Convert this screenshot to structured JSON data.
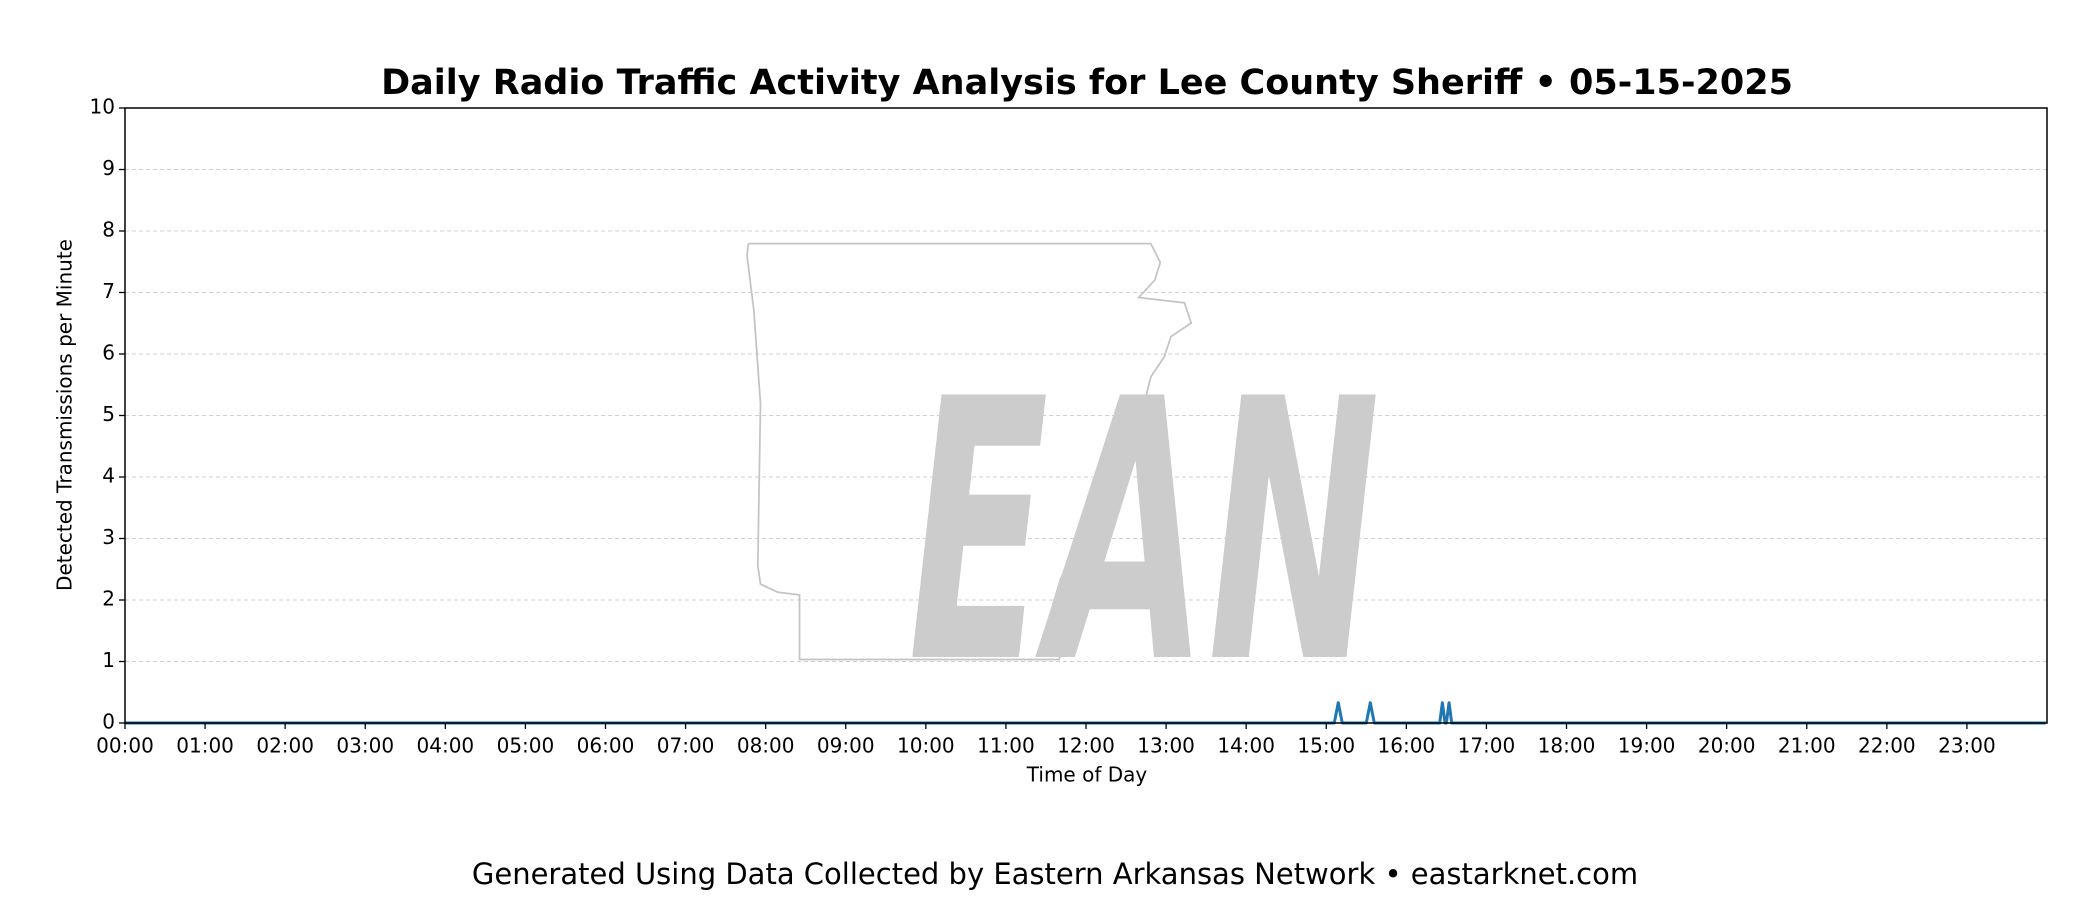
{
  "chart_data": {
    "type": "line",
    "title": "Daily Radio Traffic Activity Analysis for Lee County Sheriff • 05-15-2025",
    "x_label": "Time of Day",
    "y_label": "Detected Transmissions per Minute",
    "footer": "Generated Using Data Collected by Eastern Arkansas Network • eastarknet.com",
    "watermark": "EAN",
    "x": [
      0,
      906,
      909,
      912,
      930,
      933,
      936,
      985,
      987,
      989,
      990,
      992,
      994,
      1439
    ],
    "series": [
      {
        "color": "#1f77b4",
        "values": [
          0,
          0,
          0.33,
          0,
          0,
          0.33,
          0,
          0,
          0.33,
          0,
          0,
          0.33,
          0,
          0
        ]
      }
    ],
    "xlim": [
      0,
      1440
    ],
    "xticks": [
      {
        "value": 0,
        "label": "00:00"
      },
      {
        "value": 60,
        "label": "01:00"
      },
      {
        "value": 120,
        "label": "02:00"
      },
      {
        "value": 180,
        "label": "03:00"
      },
      {
        "value": 240,
        "label": "04:00"
      },
      {
        "value": 300,
        "label": "05:00"
      },
      {
        "value": 360,
        "label": "06:00"
      },
      {
        "value": 420,
        "label": "07:00"
      },
      {
        "value": 480,
        "label": "08:00"
      },
      {
        "value": 540,
        "label": "09:00"
      },
      {
        "value": 600,
        "label": "10:00"
      },
      {
        "value": 660,
        "label": "11:00"
      },
      {
        "value": 720,
        "label": "12:00"
      },
      {
        "value": 780,
        "label": "13:00"
      },
      {
        "value": 840,
        "label": "14:00"
      },
      {
        "value": 900,
        "label": "15:00"
      },
      {
        "value": 960,
        "label": "16:00"
      },
      {
        "value": 1020,
        "label": "17:00"
      },
      {
        "value": 1080,
        "label": "18:00"
      },
      {
        "value": 1140,
        "label": "19:00"
      },
      {
        "value": 1200,
        "label": "20:00"
      },
      {
        "value": 1260,
        "label": "21:00"
      },
      {
        "value": 1320,
        "label": "22:00"
      },
      {
        "value": 1380,
        "label": "23:00"
      }
    ],
    "ylim": [
      0,
      10
    ],
    "yticks": [
      0,
      1,
      2,
      3,
      4,
      5,
      6,
      7,
      8,
      9,
      10
    ],
    "grid": true
  }
}
